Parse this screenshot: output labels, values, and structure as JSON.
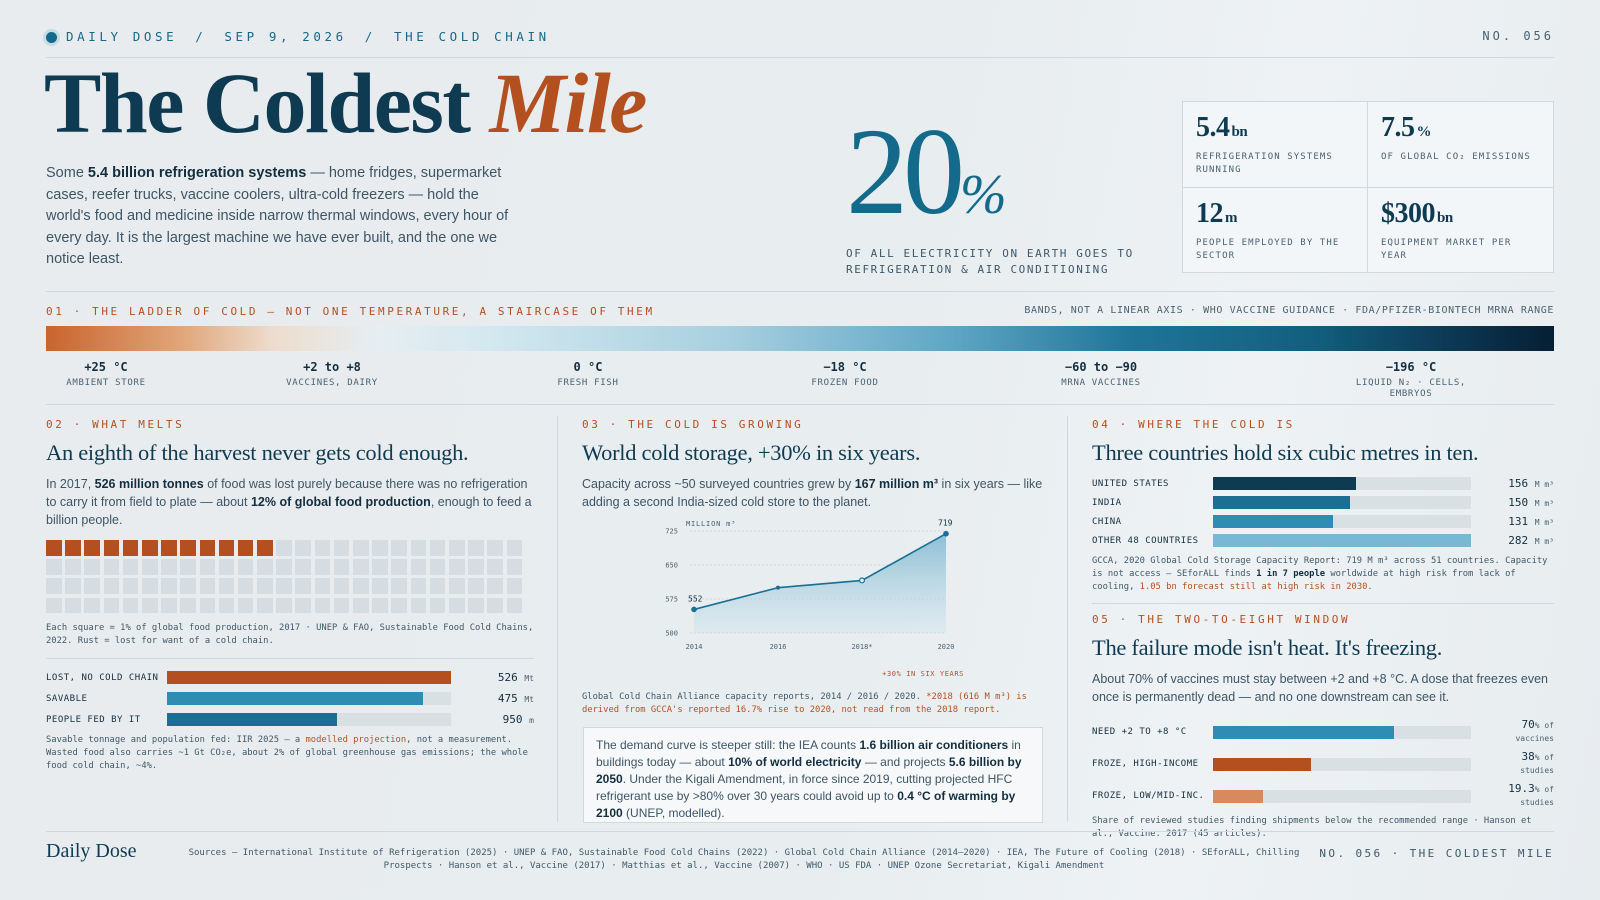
{
  "topbar": {
    "crumbs": [
      "DAILY DOSE",
      "SEP 9, 2026",
      "THE COLD CHAIN"
    ],
    "separator": "/",
    "issue": "NO. 056"
  },
  "hero": {
    "title_main": "The Coldest ",
    "title_accent": "Mile",
    "lede_pre": "Some ",
    "lede_bold": "5.4 billion refrigeration systems",
    "lede_post": " — home fridges, supermarket cases, reefer trucks, vaccine coolers, ultra-cold freezers — hold the world's food and medicine inside narrow thermal windows, every hour of every day. It is the largest machine we have ever built, and the one we notice least."
  },
  "big_stat": {
    "value": "20",
    "unit": "%",
    "caption": "OF ALL ELECTRICITY ON EARTH GOES TO REFRIGERATION & AIR CONDITIONING"
  },
  "stats": [
    {
      "value": "5.4",
      "unit": "bn",
      "label": "REFRIGERATION SYSTEMS RUNNING"
    },
    {
      "value": "7.5",
      "unit": "%",
      "label": "OF GLOBAL CO₂ EMISSIONS"
    },
    {
      "value": "12",
      "unit": "m",
      "label": "PEOPLE EMPLOYED BY THE SECTOR"
    },
    {
      "value": "$300",
      "unit": "bn",
      "label": "EQUIPMENT MARKET PER YEAR"
    }
  ],
  "ladder": {
    "label": "01 · THE LADDER OF COLD — NOT ONE TEMPERATURE, A STAIRCASE OF THEM",
    "note": "BANDS, NOT A LINEAR AXIS · WHO VACCINE GUIDANCE · FDA/PFIZER-BIONTECH MRNA RANGE",
    "bands": [
      {
        "temp": "+25 °C",
        "label": "AMBIENT STORE"
      },
      {
        "temp": "+2 to +8",
        "label": "VACCINES, DAIRY"
      },
      {
        "temp": "0 °C",
        "label": "FRESH FISH"
      },
      {
        "temp": "−18 °C",
        "label": "FROZEN FOOD"
      },
      {
        "temp": "−60 to −90",
        "label": "MRNA VACCINES"
      },
      {
        "temp": "−196 °C",
        "label": "LIQUID N₂ · CELLS, EMBRYOS"
      }
    ]
  },
  "melts": {
    "label": "02 · WHAT MELTS",
    "title": "An eighth of the harvest never gets cold enough.",
    "body_1": "In 2017, ",
    "body_b1": "526 million tonnes",
    "body_2": " of food was lost purely because there was no refrigeration to carry it from field to plate — about ",
    "body_b2": "12% of global food production",
    "body_3": ", enough to feed a billion people.",
    "waffle_total": 100,
    "waffle_lost": 12,
    "waffle_caption": "Each square = 1% of global food production, 2017 · UNEP & FAO, Sustainable Food Cold Chains, 2022. Rust = lost for want of a cold chain.",
    "bars": [
      {
        "label": "LOST, NO COLD CHAIN",
        "value": "526",
        "unit": "Mt",
        "fraction": 1.0,
        "color": "#b4501f"
      },
      {
        "label": "SAVABLE",
        "value": "475",
        "unit": "Mt",
        "fraction": 0.903,
        "color": "#2f8db3"
      },
      {
        "label": "PEOPLE FED BY IT",
        "value": "950",
        "unit": "m",
        "fraction": 0.6,
        "color": "#1a6f92"
      }
    ],
    "note_1": "Savable tonnage and population fed: IIR 2025 — a ",
    "note_hl": "modelled projection",
    "note_2": ", not a measurement. Wasted food also carries ~1 Gt CO₂e, about 2% of global greenhouse gas emissions; the whole food cold chain, ~4%."
  },
  "growing": {
    "label": "03 · THE COLD IS GROWING",
    "title": "World cold storage, +30% in six years.",
    "body_1": "Capacity across ~50 surveyed countries grew by ",
    "body_b1": "167 million m³",
    "body_2": " in six years — like adding a second India-sized cold store to the planet.",
    "note_1": "Global Cold Chain Alliance capacity reports, 2014 / 2016 / 2020. ",
    "note_hl": "*2018 (616 M m³) is derived from GCCA's reported 16.7% rise to 2020, not read from the 2018 report.",
    "callout_1": "The demand curve is steeper still: the IEA counts ",
    "callout_b1": "1.6 billion air conditioners",
    "callout_2": " in buildings today — about ",
    "callout_b2": "10% of world electricity",
    "callout_3": " — and projects ",
    "callout_b3": "5.6 billion by 2050",
    "callout_4": ". Under the Kigali Amendment, in force since 2019, cutting projected HFC refrigerant use by >80% over 30 years could avoid up to ",
    "callout_b4": "0.4 °C of warming by 2100",
    "callout_5": " (UNEP, modelled)."
  },
  "chart_data": {
    "type": "area",
    "ylabel": "MILLION m³",
    "x": [
      "2014",
      "2016",
      "2018*",
      "2020"
    ],
    "x_numeric": [
      2014,
      2016,
      2018,
      2020
    ],
    "series": [
      {
        "values": [
          552,
          600,
          616,
          719
        ]
      }
    ],
    "yticks": [
      500,
      575,
      650,
      725
    ],
    "ylim": [
      500,
      725
    ],
    "labels": {
      "first": "552",
      "last": "719"
    },
    "annotation": "+30% IN SIX YEARS",
    "line_color": "#1a6f92",
    "grid": true
  },
  "where": {
    "label": "04 · WHERE THE COLD IS",
    "title": "Three countries hold six cubic metres in ten.",
    "bars": [
      {
        "label": "UNITED STATES",
        "value": "156",
        "unit": "M m³",
        "fraction": 0.553,
        "color": "#0e3b52"
      },
      {
        "label": "INDIA",
        "value": "150",
        "unit": "M m³",
        "fraction": 0.532,
        "color": "#1a6f92"
      },
      {
        "label": "CHINA",
        "value": "131",
        "unit": "M m³",
        "fraction": 0.465,
        "color": "#2f8db3"
      },
      {
        "label": "OTHER 48 COUNTRIES",
        "value": "282",
        "unit": "M m³",
        "fraction": 1.0,
        "color": "#79b8d4"
      }
    ],
    "note_1": "GCCA, 2020 Global Cold Storage Capacity Report: 719 M m³ across 51 countries. Capacity is not access — SEforALL finds ",
    "note_b": "1 in 7 people",
    "note_2": " worldwide at high risk from lack of cooling, ",
    "note_hl": "1.05 bn forecast still at high risk in 2030",
    "note_3": "."
  },
  "window": {
    "label": "05 · THE TWO-TO-EIGHT WINDOW",
    "title": "The failure mode isn't heat. It's freezing.",
    "body": "About 70% of vaccines must stay between +2 and +8 °C. A dose that freezes even once is permanently dead — and no one downstream can see it.",
    "bars": [
      {
        "label": "NEED +2 TO +8 °C",
        "value": "70",
        "unit": "% of",
        "sub": "vaccines",
        "fraction": 0.7,
        "color": "#2f8db3"
      },
      {
        "label": "FROZE, HIGH-INCOME",
        "value": "38",
        "unit": "% of",
        "sub": "studies",
        "fraction": 0.38,
        "color": "#b4501f"
      },
      {
        "label": "FROZE, LOW/MID-INC.",
        "value": "19.3",
        "unit": "% of",
        "sub": "studies",
        "fraction": 0.193,
        "color": "#d68a5e"
      }
    ],
    "note": "Share of reviewed studies finding shipments below the recommended range · Hanson et al., Vaccine. 2017 (45 articles)."
  },
  "footer": {
    "brand": "Daily Dose",
    "sources": "Sources — International Institute of Refrigeration (2025) · UNEP & FAO, Sustainable Food Cold Chains (2022) · Global Cold Chain Alliance (2014–2020) · IEA, The Future of Cooling (2018) · SEforALL, Chilling Prospects · Hanson et al., Vaccine (2017) · Matthias et al., Vaccine (2007) · WHO · US FDA · UNEP Ozone Secretariat, Kigali Amendment",
    "issue": "NO. 056 · THE COLDEST MILE"
  }
}
